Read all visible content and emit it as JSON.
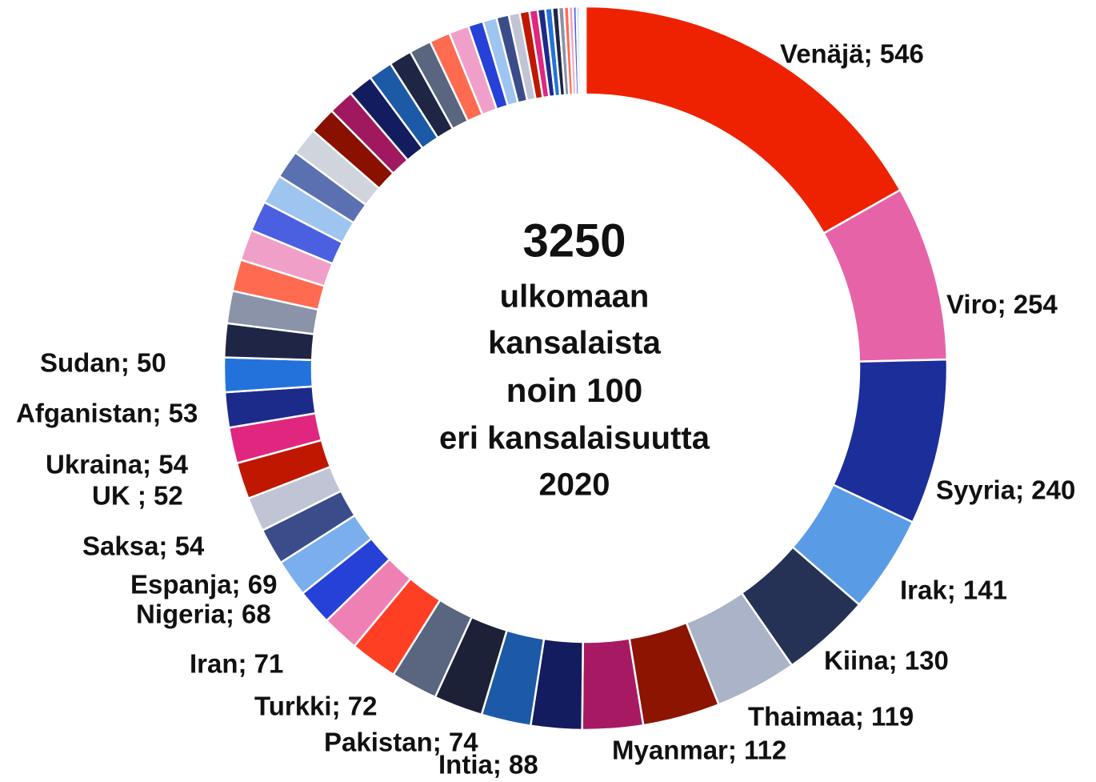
{
  "chart_data": {
    "type": "donut",
    "center_text": [
      {
        "text": "3250",
        "color": "#1f2d8f"
      },
      {
        "text": "ulkomaan",
        "color": "#111111"
      },
      {
        "text": "kansalaista",
        "color": "#111111"
      },
      {
        "text": "noin 100",
        "color": "#1f2d8f"
      },
      {
        "text": "eri kansalaisuutta",
        "color": "#111111"
      },
      {
        "text": "2020",
        "color": "#111111"
      }
    ],
    "values": [
      546,
      254,
      240,
      141,
      130,
      119,
      112,
      88,
      74,
      72,
      71,
      68,
      69,
      54,
      52,
      54,
      53,
      50,
      53,
      52,
      51,
      50,
      49,
      47,
      46,
      45,
      44,
      43,
      41,
      40,
      39,
      37,
      36,
      35,
      33,
      32,
      30,
      29,
      22,
      20,
      18,
      16,
      14,
      12,
      11,
      10,
      9,
      8,
      7,
      6,
      5,
      4,
      3,
      2,
      2,
      1,
      1
    ],
    "value_labels": [
      "Venäjä; 546",
      "Viro; 254",
      "Syyria; 240",
      "Irak; 141",
      "Kiina; 130",
      "Thaimaa; 119",
      "Myanmar; 112",
      "Intia; 88",
      "Pakistan; 74",
      "Turkki; 72",
      "Iran; 71",
      "Nigeria; 68",
      "Espanja; 69",
      "Saksa; 54",
      "UK ; 52",
      "Ukraina; 54",
      "Afganistan; 53",
      "Sudan; 50",
      null,
      null,
      null,
      null,
      null,
      null,
      null,
      null,
      null,
      null,
      null,
      null,
      null,
      null,
      null,
      null,
      null,
      null,
      null,
      null,
      null,
      null,
      null,
      null,
      null,
      null,
      null,
      null,
      null,
      null,
      null,
      null,
      null,
      null,
      null,
      null,
      null,
      null,
      null
    ],
    "colors": [
      "#ee2200",
      "#e763a8",
      "#1c2e9a",
      "#5a9be6",
      "#253255",
      "#aab3c8",
      "#8c1400",
      "#a71a63",
      "#131c5e",
      "#1c5aa7",
      "#1c2137",
      "#5a6580",
      "#ff3f24",
      "#ef80b4",
      "#2641d8",
      "#7aaeec",
      "#3a4c8a",
      "#c0c4d4",
      "#c01800",
      "#e0267f",
      "#1c2a8a",
      "#2372dc",
      "#1e2545",
      "#8a93a8",
      "#ff6b50",
      "#f0a0c8",
      "#4a60e0",
      "#9ec4f0",
      "#5a70b0",
      "#d0d4dc",
      "#8a1000",
      "#a01860",
      "#131c5e",
      "#1c5aa7",
      "#1e2545",
      "#5a6580",
      "#ff6b50",
      "#f0a0c8",
      "#2641d8",
      "#9ec4f0",
      "#3a4c8a",
      "#c0c4d4",
      "#c01800",
      "#e0267f",
      "#1c2a8a",
      "#2372dc",
      "#1e2545",
      "#8a93a8",
      "#ff6b50",
      "#f0a0c8",
      "#4a60e0",
      "#9ec4f0",
      "#5a70b0",
      "#d0d4dc",
      "#8a1000",
      "#a01860",
      "#5a9be6"
    ]
  }
}
